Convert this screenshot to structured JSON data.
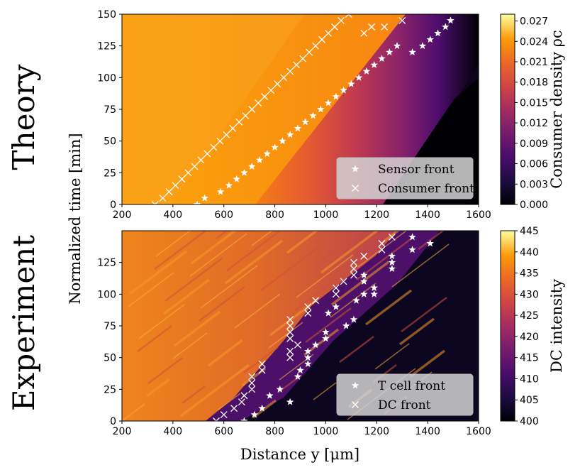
{
  "figure": {
    "shared_xlabel": "Distance y [μm]",
    "shared_ylabel": "Normalized time [min]"
  },
  "chart_data": [
    {
      "type": "heatmap",
      "row_label": "Theory",
      "xlabel": "Distance y [μm]",
      "ylabel": "Normalized time [min]",
      "xlim": [
        200,
        1600
      ],
      "ylim": [
        0,
        150
      ],
      "x_ticks": [
        200,
        400,
        600,
        800,
        1000,
        1200,
        1400,
        1600
      ],
      "y_ticks": [
        0,
        25,
        50,
        75,
        100,
        125,
        150
      ],
      "colorbar": {
        "label": "Consumer density ρc",
        "range": [
          0.0,
          0.028
        ],
        "ticks": [
          "0.000",
          "0.003",
          "0.006",
          "0.009",
          "0.012",
          "0.015",
          "0.018",
          "0.021",
          "0.024",
          "0.027"
        ],
        "colormap": "inferno"
      },
      "legend": {
        "position": "lower-right",
        "entries": [
          {
            "label": "Sensor front",
            "marker": "star"
          },
          {
            "label": "Consumer front",
            "marker": "x"
          }
        ]
      },
      "series": [
        {
          "name": "Sensor front",
          "marker": "star",
          "points": [
            [
              495,
              0
            ],
            [
              525,
              5
            ],
            [
              587,
              10
            ],
            [
              620,
              15
            ],
            [
              650,
              20
            ],
            [
              680,
              25
            ],
            [
              710,
              30
            ],
            [
              740,
              35
            ],
            [
              770,
              40
            ],
            [
              800,
              45
            ],
            [
              830,
              50
            ],
            [
              860,
              55
            ],
            [
              890,
              60
            ],
            [
              920,
              65
            ],
            [
              950,
              70
            ],
            [
              980,
              75
            ],
            [
              1010,
              80
            ],
            [
              1040,
              85
            ],
            [
              1070,
              90
            ],
            [
              1100,
              95
            ],
            [
              1130,
              100
            ],
            [
              1160,
              105
            ],
            [
              1190,
              110
            ],
            [
              1220,
              115
            ],
            [
              1250,
              120
            ],
            [
              1280,
              125
            ],
            [
              1340,
              120
            ],
            [
              1380,
              125
            ],
            [
              1410,
              130
            ],
            [
              1440,
              135
            ],
            [
              1470,
              140
            ],
            [
              1490,
              145
            ]
          ]
        },
        {
          "name": "Consumer front",
          "marker": "x",
          "points": [
            [
              330,
              0
            ],
            [
              360,
              5
            ],
            [
              385,
              10
            ],
            [
              410,
              15
            ],
            [
              435,
              20
            ],
            [
              460,
              25
            ],
            [
              485,
              30
            ],
            [
              510,
              35
            ],
            [
              535,
              40
            ],
            [
              560,
              45
            ],
            [
              585,
              50
            ],
            [
              610,
              55
            ],
            [
              635,
              60
            ],
            [
              660,
              65
            ],
            [
              685,
              70
            ],
            [
              710,
              75
            ],
            [
              735,
              80
            ],
            [
              760,
              85
            ],
            [
              785,
              90
            ],
            [
              810,
              95
            ],
            [
              835,
              100
            ],
            [
              860,
              105
            ],
            [
              885,
              110
            ],
            [
              910,
              115
            ],
            [
              935,
              120
            ],
            [
              960,
              125
            ],
            [
              985,
              130
            ],
            [
              1010,
              135
            ],
            [
              1035,
              140
            ],
            [
              1060,
              145
            ],
            [
              1090,
              150
            ],
            [
              1150,
              135
            ],
            [
              1180,
              140
            ],
            [
              1230,
              140
            ],
            [
              1300,
              145
            ]
          ]
        }
      ]
    },
    {
      "type": "heatmap",
      "row_label": "Experiment",
      "xlabel": "Distance y [μm]",
      "ylabel": "Normalized time [min]",
      "xlim": [
        200,
        1600
      ],
      "ylim": [
        0,
        150
      ],
      "x_ticks": [
        200,
        400,
        600,
        800,
        1000,
        1200,
        1400,
        1600
      ],
      "y_ticks": [
        0,
        25,
        50,
        75,
        100,
        125
      ],
      "colorbar": {
        "label": "DC intensity",
        "range": [
          400,
          445
        ],
        "ticks": [
          "400",
          "405",
          "410",
          "415",
          "420",
          "425",
          "430",
          "435",
          "440",
          "445"
        ],
        "colormap": "inferno"
      },
      "legend": {
        "position": "lower-right",
        "entries": [
          {
            "label": "T cell front",
            "marker": "star"
          },
          {
            "label": "DC front",
            "marker": "x"
          }
        ]
      },
      "series": [
        {
          "name": "T cell front",
          "marker": "star",
          "points": [
            [
              680,
              0
            ],
            [
              720,
              5
            ],
            [
              750,
              10
            ],
            [
              780,
              20
            ],
            [
              820,
              25
            ],
            [
              860,
              15
            ],
            [
              890,
              35
            ],
            [
              900,
              40
            ],
            [
              930,
              45
            ],
            [
              930,
              50
            ],
            [
              930,
              55
            ],
            [
              960,
              60
            ],
            [
              1000,
              65
            ],
            [
              1000,
              70
            ],
            [
              1010,
              85
            ],
            [
              1040,
              90
            ],
            [
              1080,
              75
            ],
            [
              1110,
              80
            ],
            [
              1120,
              95
            ],
            [
              1150,
              100
            ],
            [
              1190,
              100
            ],
            [
              1190,
              105
            ],
            [
              1150,
              110
            ],
            [
              1150,
              115
            ],
            [
              1260,
              120
            ],
            [
              1260,
              125
            ],
            [
              1260,
              130
            ],
            [
              1340,
              135
            ],
            [
              1340,
              145
            ],
            [
              1410,
              140
            ]
          ]
        },
        {
          "name": "DC front",
          "marker": "x",
          "points": [
            [
              570,
              0
            ],
            [
              600,
              5
            ],
            [
              640,
              10
            ],
            [
              670,
              15
            ],
            [
              680,
              20
            ],
            [
              710,
              25
            ],
            [
              710,
              30
            ],
            [
              710,
              35
            ],
            [
              750,
              40
            ],
            [
              750,
              45
            ],
            [
              860,
              50
            ],
            [
              860,
              55
            ],
            [
              890,
              60
            ],
            [
              860,
              65
            ],
            [
              860,
              70
            ],
            [
              860,
              75
            ],
            [
              860,
              80
            ],
            [
              930,
              85
            ],
            [
              930,
              90
            ],
            [
              960,
              95
            ],
            [
              1040,
              100
            ],
            [
              1040,
              105
            ],
            [
              1070,
              110
            ],
            [
              1110,
              115
            ],
            [
              1110,
              120
            ],
            [
              1110,
              125
            ],
            [
              1150,
              130
            ],
            [
              1220,
              135
            ],
            [
              1220,
              140
            ],
            [
              1260,
              145
            ]
          ]
        }
      ]
    }
  ]
}
